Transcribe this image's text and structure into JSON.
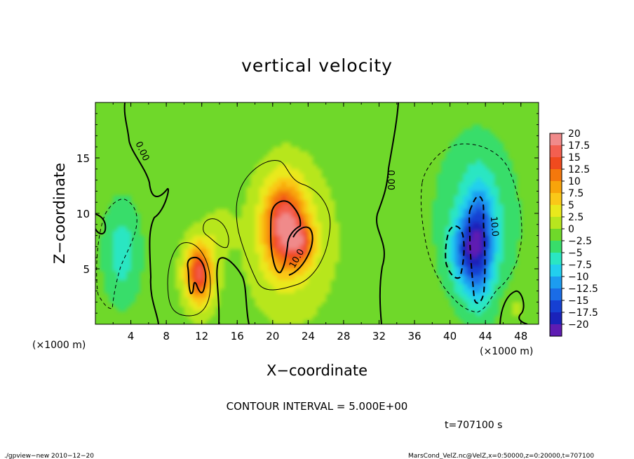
{
  "chart_data": {
    "type": "heatmap",
    "title": "vertical velocity",
    "xlabel": "X−coordinate",
    "ylabel": "Z−coordinate",
    "x_unit_left": "(×1000 m)",
    "x_unit_right": "(×1000 m)",
    "xlim": [
      0,
      50
    ],
    "ylim": [
      0,
      20
    ],
    "x_ticks": [
      4,
      8,
      12,
      16,
      20,
      24,
      28,
      32,
      36,
      40,
      44,
      48
    ],
    "y_ticks": [
      5,
      10,
      15
    ],
    "contour_interval_text": "CONTOUR INTERVAL = 5.000E+00",
    "time_text": "t=707100 s",
    "footer_left": "./gpview−new   2010−12−20",
    "footer_right": "MarsCond_VelZ.nc@VelZ,x=0:50000,z=0:20000,t=707100",
    "contour_labels": [
      {
        "text": "0.00",
        "x": 5.0,
        "y": 15.5,
        "rotate": 65
      },
      {
        "text": "0.00",
        "x": 33.0,
        "y": 13.0,
        "rotate": 90
      },
      {
        "text": "10.0",
        "x": 23.0,
        "y": 5.8,
        "rotate": -60
      },
      {
        "text": "10.0",
        "x": 44.7,
        "y": 8.8,
        "rotate": 85
      }
    ],
    "colorbar": {
      "labels": [
        "20",
        "17.5",
        "15",
        "12.5",
        "10",
        "7.5",
        "5",
        "2.5",
        "0",
        "−2.5",
        "−5",
        "−7.5",
        "−10",
        "−12.5",
        "−15",
        "−17.5",
        "−20"
      ],
      "colors": [
        "#f08a8a",
        "#f35f50",
        "#f04a1e",
        "#f4780c",
        "#f8a40a",
        "#fac818",
        "#e9e91c",
        "#b7e61e",
        "#6fd82a",
        "#38dd6a",
        "#2ae6c2",
        "#22cfee",
        "#1c9cf0",
        "#1a6ce6",
        "#1640d2",
        "#1a22ba",
        "#5e1cb2"
      ]
    },
    "features": [
      {
        "cx": 11.7,
        "cz": 4.6,
        "rx": 1.6,
        "rz": 2.8,
        "w": 17
      },
      {
        "cx": 21.3,
        "cz": 8.9,
        "rx": 2.2,
        "rz": 3.8,
        "w": 17
      },
      {
        "cx": 23.3,
        "cz": 7.3,
        "rx": 1.4,
        "rz": 2.0,
        "w": 9
      },
      {
        "cx": 22.0,
        "cz": 7.5,
        "rx": 5.0,
        "rz": 7.0,
        "w": 4
      },
      {
        "cx": 14.0,
        "cz": 8.5,
        "rx": 1.5,
        "rz": 1.8,
        "w": 3
      },
      {
        "cx": 43.3,
        "cz": 7.2,
        "rx": 1.7,
        "rz": 4.8,
        "w": -14
      },
      {
        "cx": 41.5,
        "cz": 6.5,
        "rx": 1.5,
        "rz": 3.0,
        "w": -8
      },
      {
        "cx": 43.0,
        "cz": 9.5,
        "rx": 4.5,
        "rz": 7.5,
        "w": -4
      },
      {
        "cx": 3.0,
        "cz": 6.5,
        "rx": 2.0,
        "rz": 4.5,
        "w": -5
      },
      {
        "cx": 47.5,
        "cz": 1.5,
        "rx": 1.5,
        "rz": 1.5,
        "w": 2
      }
    ]
  }
}
